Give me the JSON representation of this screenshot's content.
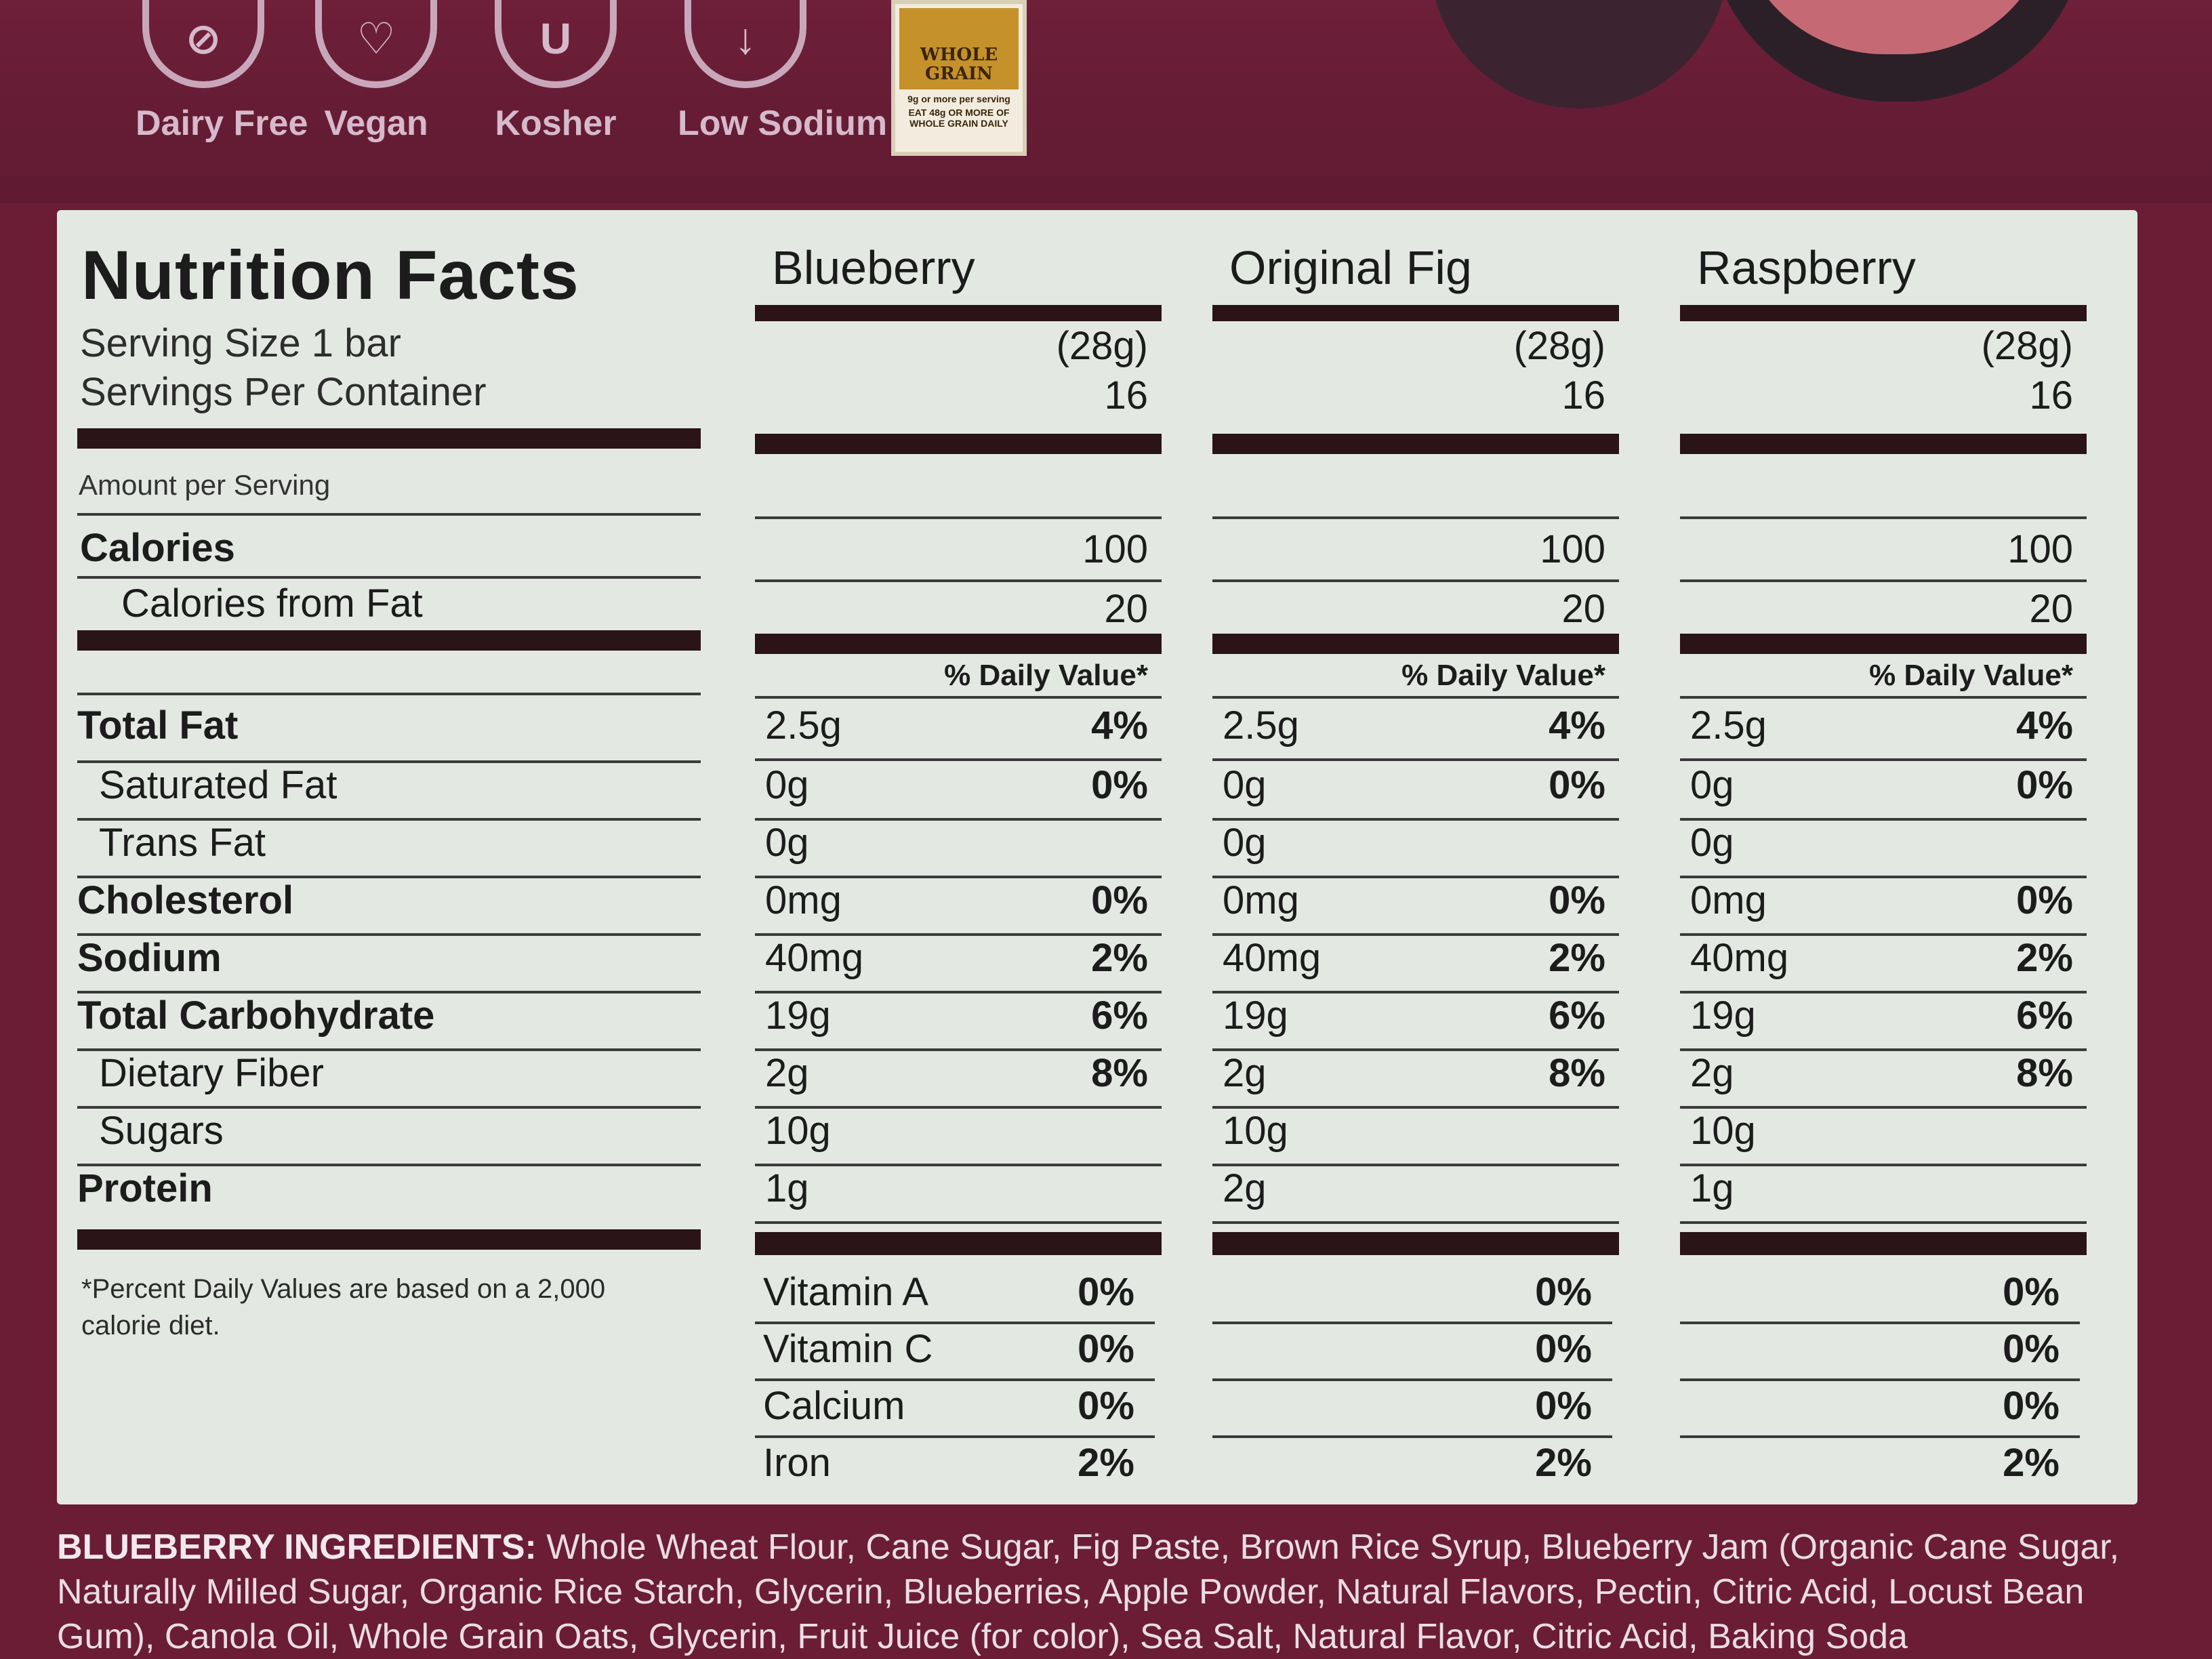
{
  "badges": [
    "Dairy Free",
    "Vegan",
    "Kosher",
    "Low Sodium"
  ],
  "whole_grain": {
    "title": "WHOLE GRAIN",
    "subtitle": "9g or more per serving",
    "note": "EAT 48g OR MORE OF WHOLE GRAIN DAILY"
  },
  "nutrition": {
    "title": "Nutrition Facts",
    "serving_size": "Serving Size 1 bar",
    "servings_per_container": "Servings Per Container",
    "amount_per_serving": "Amount per Serving",
    "daily_value_header": "% Daily Value*",
    "footnote": "*Percent Daily Values are based on a 2,000 calorie diet.",
    "rows": [
      {
        "label": "Calories",
        "bold": true
      },
      {
        "label": "Calories from Fat",
        "bold": false
      },
      {
        "label": "Total Fat",
        "bold": true
      },
      {
        "label": "Saturated Fat",
        "bold": false
      },
      {
        "label": "Trans Fat",
        "bold": false
      },
      {
        "label": "Cholesterol",
        "bold": true
      },
      {
        "label": "Sodium",
        "bold": true
      },
      {
        "label": "Total Carbohydrate",
        "bold": true
      },
      {
        "label": "Dietary Fiber",
        "bold": false
      },
      {
        "label": "Sugars",
        "bold": false
      },
      {
        "label": "Protein",
        "bold": true
      }
    ],
    "vitamin_labels": [
      "Vitamin A",
      "Vitamin C",
      "Calcium",
      "Iron"
    ],
    "columns": [
      {
        "name": "Blueberry",
        "serving_grams": "(28g)",
        "servings": "16",
        "calories": "100",
        "calories_from_fat": "20",
        "amounts": [
          "2.5g",
          "0g",
          "0g",
          "0mg",
          "40mg",
          "19g",
          "2g",
          "10g",
          "1g"
        ],
        "percents": [
          "4%",
          "0%",
          "",
          "0%",
          "2%",
          "6%",
          "8%",
          "",
          ""
        ],
        "vitamins": [
          "0%",
          "0%",
          "0%",
          "2%"
        ]
      },
      {
        "name": "Original Fig",
        "serving_grams": "(28g)",
        "servings": "16",
        "calories": "100",
        "calories_from_fat": "20",
        "amounts": [
          "2.5g",
          "0g",
          "0g",
          "0mg",
          "40mg",
          "19g",
          "2g",
          "10g",
          "2g"
        ],
        "percents": [
          "4%",
          "0%",
          "",
          "0%",
          "2%",
          "6%",
          "8%",
          "",
          ""
        ],
        "vitamins": [
          "0%",
          "0%",
          "0%",
          "2%"
        ]
      },
      {
        "name": "Raspberry",
        "serving_grams": "(28g)",
        "servings": "16",
        "calories": "100",
        "calories_from_fat": "20",
        "amounts": [
          "2.5g",
          "0g",
          "0g",
          "0mg",
          "40mg",
          "19g",
          "2g",
          "10g",
          "1g"
        ],
        "percents": [
          "4%",
          "0%",
          "",
          "0%",
          "2%",
          "6%",
          "8%",
          "",
          ""
        ],
        "vitamins": [
          "0%",
          "0%",
          "0%",
          "2%"
        ]
      }
    ]
  },
  "ingredients": {
    "label": "BLUEBERRY INGREDIENTS:",
    "text": "Whole Wheat Flour, Cane Sugar, Fig Paste, Brown Rice Syrup, Blueberry Jam (Organic Cane Sugar, Naturally Milled Sugar, Organic Rice Starch, Glycerin, Blueberries, Apple Powder, Natural Flavors, Pectin, Citric Acid, Locust Bean Gum), Canola Oil, Whole Grain Oats, Glycerin, Fruit Juice (for color), Sea Salt, Natural Flavor, Citric Acid, Baking Soda"
  }
}
